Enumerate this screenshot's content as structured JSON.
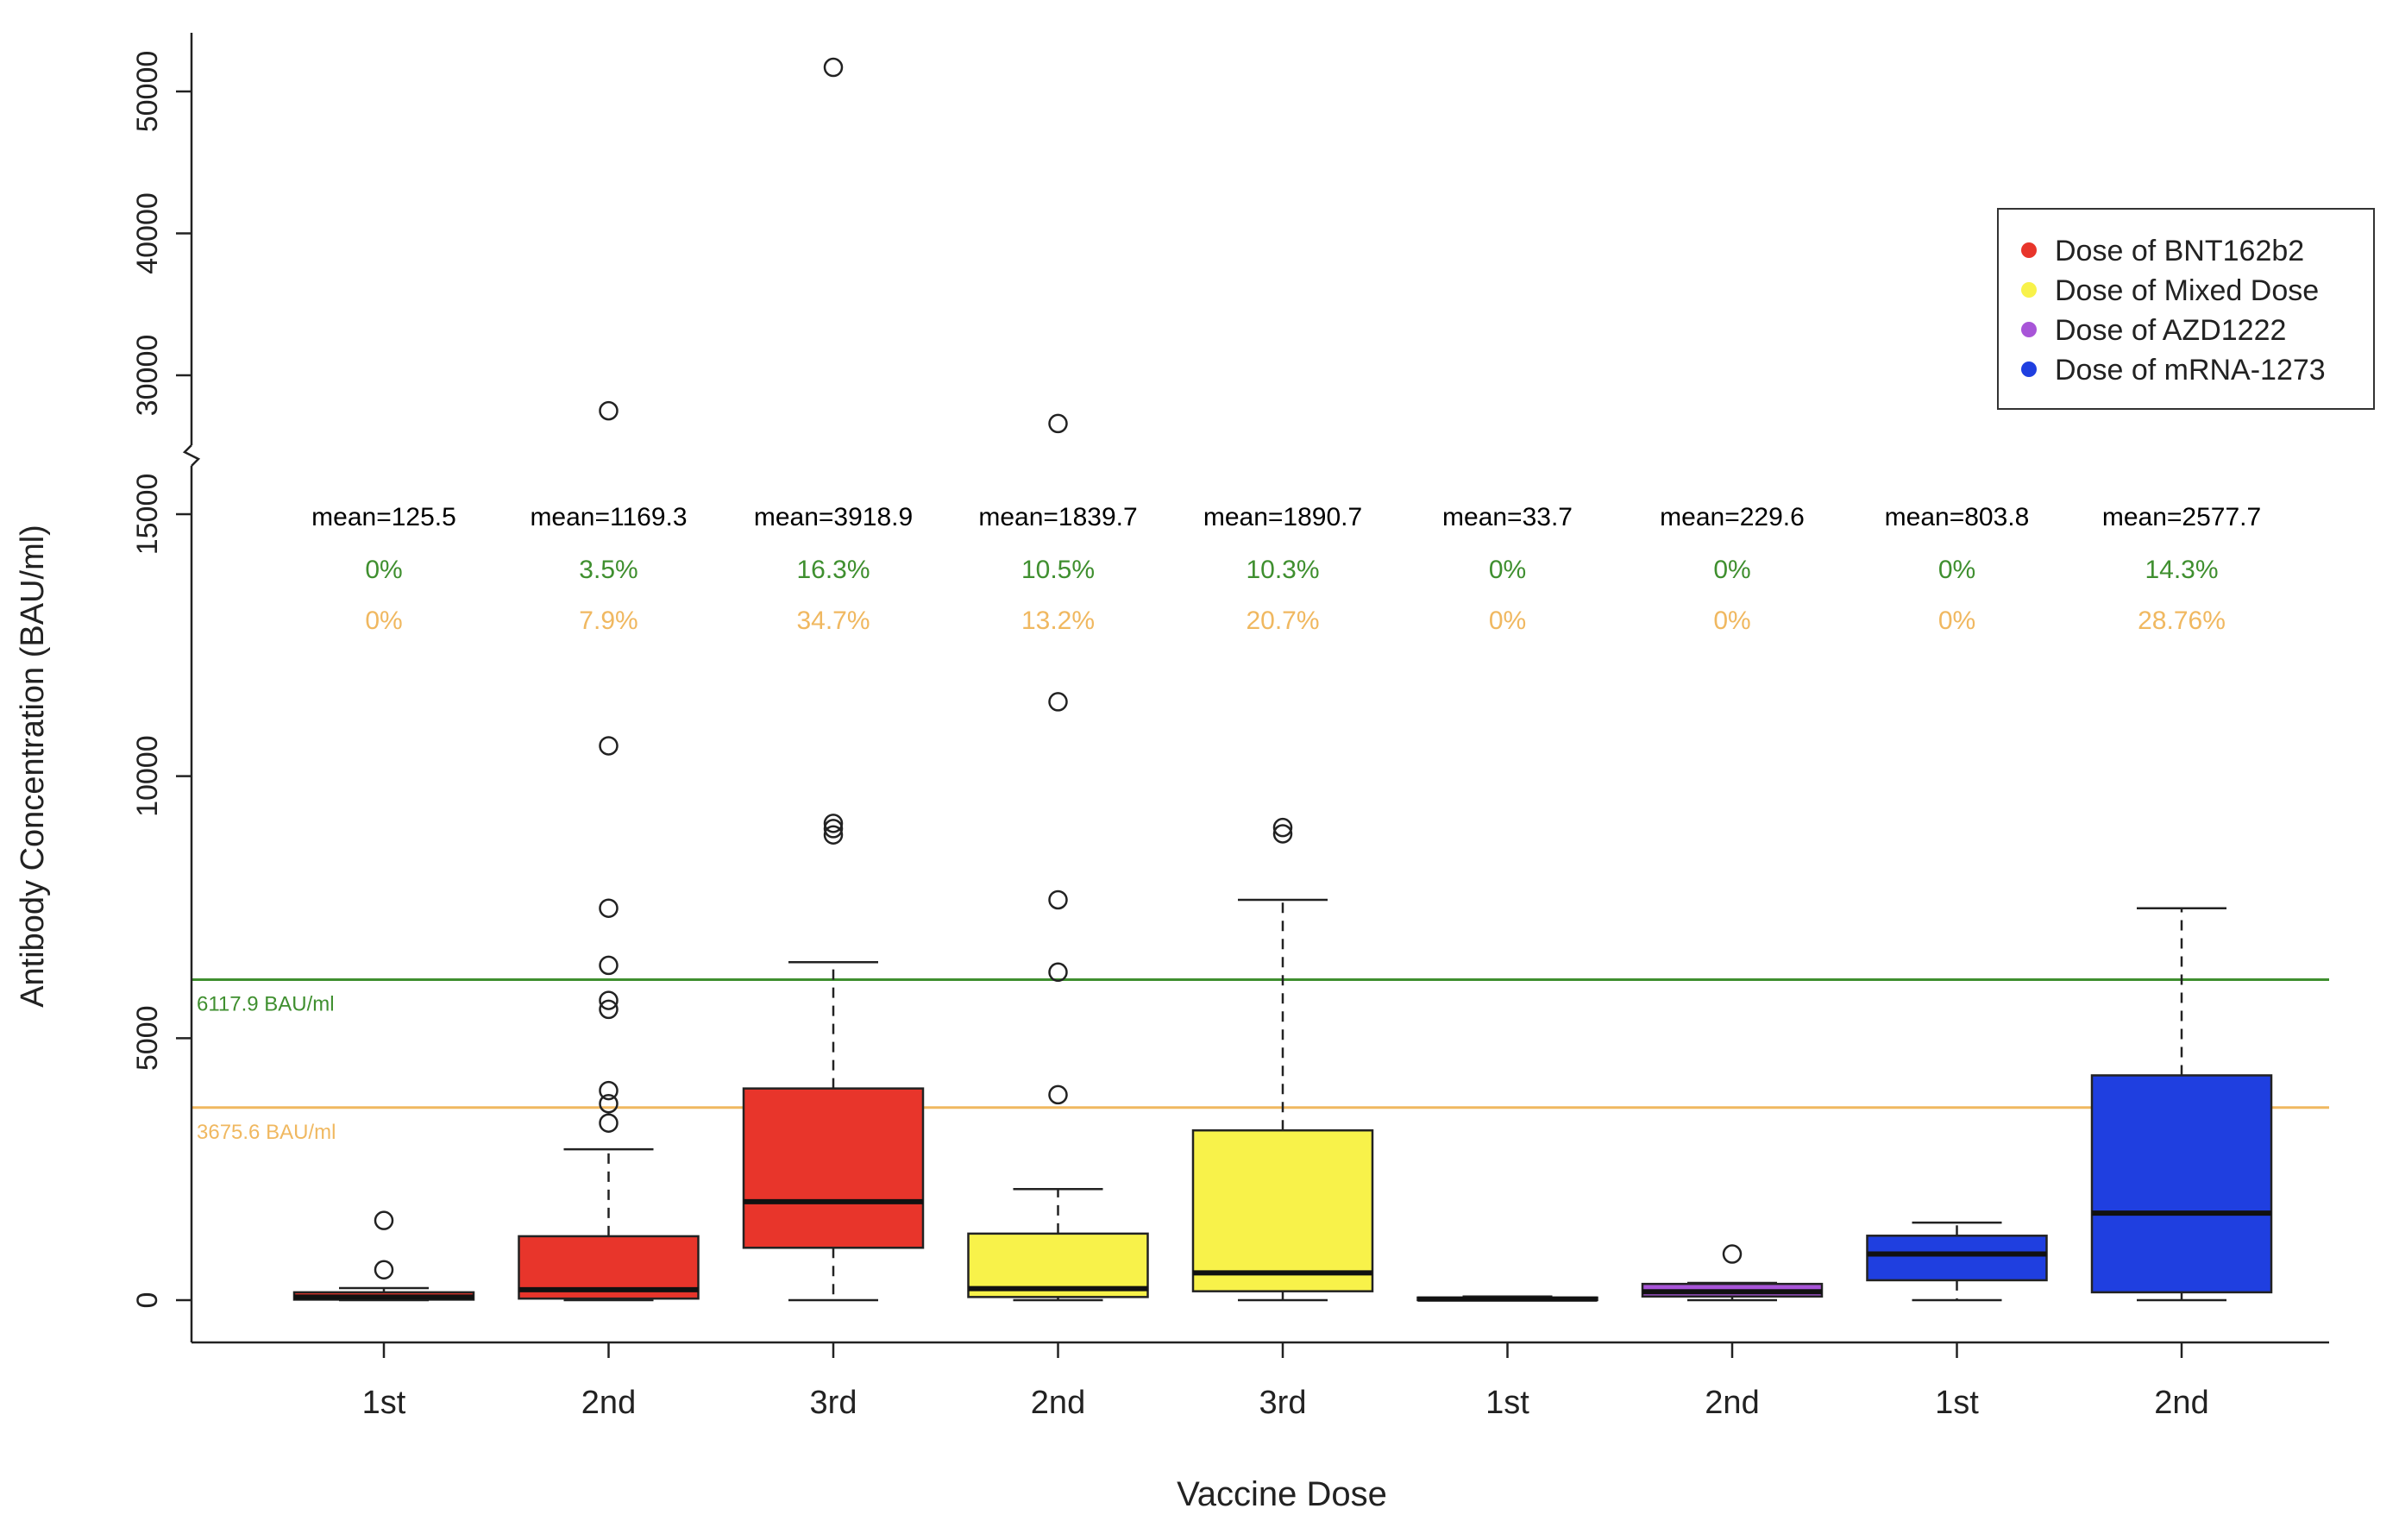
{
  "chart_data": {
    "type": "boxplot",
    "title": "",
    "xlabel": "Vaccine Dose",
    "ylabel": "Antibody Concentration (BAU/ml)",
    "axis_break": true,
    "lower_axis": {
      "range": [
        0,
        15500
      ],
      "ticks": [
        0,
        5000,
        10000,
        15000
      ],
      "tick_labels": [
        "0",
        "5000",
        "10000",
        "15000"
      ]
    },
    "upper_axis": {
      "range": [
        25500,
        52000
      ],
      "ticks": [
        30000,
        40000,
        50000
      ],
      "tick_labels": [
        "30000",
        "40000",
        "50000"
      ]
    },
    "legend_position": "top-right",
    "legend": [
      {
        "label": "Dose of BNT162b2",
        "color": "#e8352b"
      },
      {
        "label": "Dose of Mixed Dose",
        "color": "#f8f24a"
      },
      {
        "label": "Dose of AZD1222",
        "color": "#a855d8"
      },
      {
        "label": "Dose of mRNA-1273",
        "color": "#1f3fe0"
      }
    ],
    "reference_lines": [
      {
        "value": 6117.9,
        "label": "6117.9 BAU/ml",
        "color": "#3f8f2f"
      },
      {
        "value": 3675.6,
        "label": "3675.6 BAU/ml",
        "color": "#f0b860"
      }
    ],
    "annotation_colors": {
      "above_high": "#3f8f2f",
      "above_low": "#f0b860",
      "mean": "#000000"
    },
    "boxes": [
      {
        "category": "1st",
        "vaccine": "Dose of BNT162b2",
        "color": "#e8352b",
        "whisker_low": 0,
        "q1": 10,
        "median": 60,
        "q3": 150,
        "whisker_high": 230,
        "outliers": [
          580,
          1520
        ],
        "mean_label": "mean=125.5",
        "above_high": "0%",
        "above_low": "0%"
      },
      {
        "category": "2nd",
        "vaccine": "Dose of BNT162b2",
        "color": "#e8352b",
        "whisker_low": 0,
        "q1": 30,
        "median": 200,
        "q3": 1220,
        "whisker_high": 2880,
        "outliers": [
          3380,
          3750,
          4000,
          5550,
          5720,
          6390,
          7480,
          10580,
          27500
        ],
        "mean_label": "mean=1169.3",
        "above_high": "3.5%",
        "above_low": "7.9%"
      },
      {
        "category": "3rd",
        "vaccine": "Dose of BNT162b2",
        "color": "#e8352b",
        "whisker_low": 0,
        "q1": 1000,
        "median": 1880,
        "q3": 4040,
        "whisker_high": 6450,
        "outliers": [
          8880,
          9000,
          9100,
          51700
        ],
        "mean_label": "mean=3918.9",
        "above_high": "16.3%",
        "above_low": "34.7%"
      },
      {
        "category": "2nd",
        "vaccine": "Dose of Mixed Dose",
        "color": "#f8f24a",
        "whisker_low": 0,
        "q1": 60,
        "median": 220,
        "q3": 1270,
        "whisker_high": 2120,
        "outliers": [
          3920,
          6260,
          7640,
          11420,
          26600
        ],
        "mean_label": "mean=1839.7",
        "above_high": "10.5%",
        "above_low": "13.2%"
      },
      {
        "category": "3rd",
        "vaccine": "Dose of Mixed Dose",
        "color": "#f8f24a",
        "whisker_low": 0,
        "q1": 170,
        "median": 520,
        "q3": 3240,
        "whisker_high": 7640,
        "outliers": [
          8900,
          9020
        ],
        "mean_label": "mean=1890.7",
        "above_high": "10.3%",
        "above_low": "20.7%"
      },
      {
        "category": "1st",
        "vaccine": "Dose of AZD1222",
        "color": "#a855d8",
        "whisker_low": 0,
        "q1": 5,
        "median": 20,
        "q3": 50,
        "whisker_high": 70,
        "outliers": [],
        "mean_label": "mean=33.7",
        "above_high": "0%",
        "above_low": "0%"
      },
      {
        "category": "2nd",
        "vaccine": "Dose of AZD1222",
        "color": "#a855d8",
        "whisker_low": 0,
        "q1": 70,
        "median": 160,
        "q3": 310,
        "whisker_high": 330,
        "outliers": [
          880
        ],
        "mean_label": "mean=229.6",
        "above_high": "0%",
        "above_low": "0%"
      },
      {
        "category": "1st",
        "vaccine": "Dose of mRNA-1273",
        "color": "#1f3fe0",
        "whisker_low": 0,
        "q1": 380,
        "median": 880,
        "q3": 1230,
        "whisker_high": 1480,
        "outliers": [],
        "mean_label": "mean=803.8",
        "above_high": "0%",
        "above_low": "0%"
      },
      {
        "category": "2nd",
        "vaccine": "Dose of mRNA-1273",
        "color": "#1f3fe0",
        "whisker_low": 0,
        "q1": 150,
        "median": 1660,
        "q3": 4290,
        "whisker_high": 7480,
        "outliers": [],
        "mean_label": "mean=2577.7",
        "above_high": "14.3%",
        "above_low": "28.76%"
      }
    ]
  }
}
